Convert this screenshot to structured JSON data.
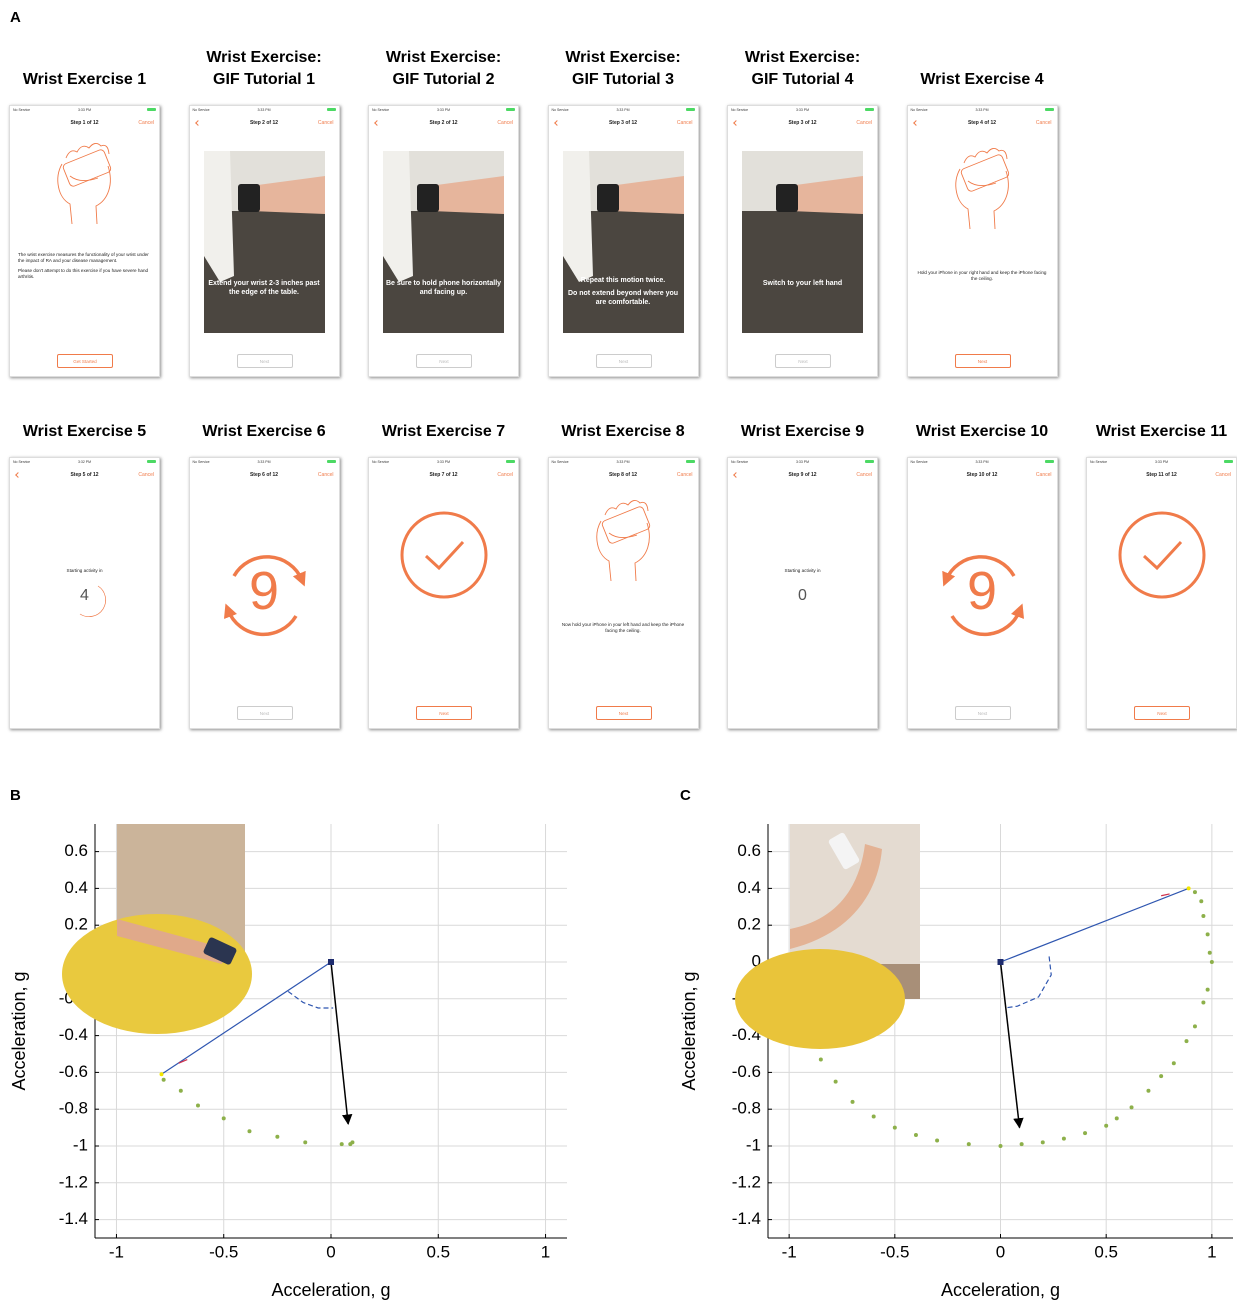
{
  "panel_labels": [
    "A",
    "B",
    "C"
  ],
  "screens": [
    [
      {
        "title": [
          "Wrist Exercise 1"
        ],
        "carrier": "No Service",
        "time": "3:33 PM",
        "step": "Step 1 of 12",
        "cancel": "Cancel",
        "back": false,
        "kind": "hand",
        "align": "left",
        "text": [
          "The wrist exercise measures the functionality of your wrist under the impact of RA and your disease management.",
          "Please don't attempt to do this exercise if you have severe hand arthritis."
        ],
        "button": "Get Started",
        "button_enabled": true
      },
      {
        "title": [
          "Wrist Exercise:",
          "GIF Tutorial 1"
        ],
        "carrier": "No Service",
        "time": "3:33 PM",
        "step": "Step 2 of 12",
        "cancel": "Cancel",
        "back": true,
        "kind": "photo",
        "table": true,
        "text": [
          "Extend your wrist 2-3 inches past the edge of the table."
        ],
        "button": "Next",
        "button_enabled": false
      },
      {
        "title": [
          "Wrist Exercise:",
          "GIF Tutorial 2"
        ],
        "carrier": "No Service",
        "time": "3:33 PM",
        "step": "Step 2 of 12",
        "cancel": "Cancel",
        "back": true,
        "kind": "photo",
        "table": true,
        "text": [
          "Be sure to hold phone horizontally and facing up."
        ],
        "button": "Next",
        "button_enabled": false
      },
      {
        "title": [
          "Wrist Exercise:",
          "GIF Tutorial 3"
        ],
        "carrier": "No Service",
        "time": "3:33 PM",
        "step": "Step 3 of 12",
        "cancel": "Cancel",
        "back": true,
        "kind": "photo",
        "table": true,
        "text": [
          "Repeat this motion twice.",
          "Do not extend beyond where you are comfortable."
        ],
        "button": "Next",
        "button_enabled": false
      },
      {
        "title": [
          "Wrist Exercise:",
          "GIF Tutorial 4"
        ],
        "carrier": "No Service",
        "time": "3:33 PM",
        "step": "Step 3 of 12",
        "cancel": "Cancel",
        "back": true,
        "kind": "photo",
        "table": false,
        "text": [
          "Switch to your left hand"
        ],
        "button": "Next",
        "button_enabled": false
      },
      {
        "title": [
          "Wrist Exercise 4"
        ],
        "carrier": "No Service",
        "time": "3:33 PM",
        "step": "Step 4 of 12",
        "cancel": "Cancel",
        "back": true,
        "kind": "hand",
        "align": "center",
        "text": [
          "Hold your iPhone in your right hand and keep the iPhone facing the ceiling."
        ],
        "button": "Next",
        "button_enabled": true
      }
    ],
    [
      {
        "title": [
          "Wrist Exercise 5"
        ],
        "carrier": "No Service",
        "time": "3:32 PM",
        "step": "Step 5 of 12",
        "cancel": "Cancel",
        "back": true,
        "kind": "countdown",
        "ring": true,
        "text": [
          "Starting activity in"
        ],
        "number": "4"
      },
      {
        "title": [
          "Wrist Exercise 6"
        ],
        "carrier": "No Service",
        "time": "3:33 PM",
        "step": "Step 6 of 12",
        "cancel": "Cancel",
        "back": false,
        "kind": "rotate",
        "mirror": false,
        "number": "9",
        "button": "Next",
        "button_enabled": false
      },
      {
        "title": [
          "Wrist Exercise 7"
        ],
        "carrier": "No Service",
        "time": "3:33 PM",
        "step": "Step 7 of 12",
        "cancel": "Cancel",
        "back": false,
        "kind": "check",
        "button": "Next",
        "button_enabled": true
      },
      {
        "title": [
          "Wrist Exercise 8"
        ],
        "carrier": "No Service",
        "time": "3:33 PM",
        "step": "Step 8 of 12",
        "cancel": "Cancel",
        "back": false,
        "kind": "hand",
        "align": "center",
        "text": [
          "Now hold your iPhone in your left hand and keep the iPhone facing the ceiling."
        ],
        "button": "Next",
        "button_enabled": true
      },
      {
        "title": [
          "Wrist Exercise 9"
        ],
        "carrier": "No Service",
        "time": "3:33 PM",
        "step": "Step 9 of 12",
        "cancel": "Cancel",
        "back": true,
        "kind": "countdown",
        "ring": false,
        "text": [
          "Starting activity in"
        ],
        "number": "0"
      },
      {
        "title": [
          "Wrist Exercise 10"
        ],
        "carrier": "No Service",
        "time": "3:33 PM",
        "step": "Step 10 of 12",
        "cancel": "Cancel",
        "back": false,
        "kind": "rotate",
        "mirror": true,
        "number": "9",
        "button": "Next",
        "button_enabled": false
      },
      {
        "title": [
          "Wrist Exercise 11"
        ],
        "carrier": "No Service",
        "time": "3:33 PM",
        "step": "Step 11 of 12",
        "cancel": "Cancel",
        "back": false,
        "kind": "check",
        "button": "Next",
        "button_enabled": true
      }
    ]
  ],
  "chart_data": [
    {
      "type": "scatter",
      "xlabel": "Acceleration, g",
      "ylabel": "Acceleration, g",
      "xlim": [
        -1.1,
        1.1
      ],
      "ylim": [
        -1.5,
        0.75
      ],
      "xticks": [
        -1,
        -0.5,
        0,
        0.5,
        1
      ],
      "yticks": [
        0.6,
        0.4,
        0.2,
        0,
        -0.2,
        -0.4,
        -0.6,
        -0.8,
        -1,
        -1.2,
        -1.4
      ],
      "grid": true,
      "series": [
        {
          "mode": "markers",
          "color": "#8db04a",
          "x": [
            -0.78,
            -0.7,
            -0.62,
            -0.5,
            -0.38,
            -0.25,
            -0.12,
            0.05,
            0.09,
            0.1
          ],
          "values": [
            -0.64,
            -0.7,
            -0.78,
            -0.85,
            -0.92,
            -0.95,
            -0.98,
            -0.99,
            -0.99,
            -0.98
          ]
        },
        {
          "mode": "line",
          "color": "#2f56b0",
          "x": [
            0,
            -0.79
          ],
          "values": [
            0,
            -0.61
          ]
        },
        {
          "mode": "dashed",
          "color": "#2f56b0",
          "x": [
            -0.2,
            -0.13,
            -0.06,
            0.01
          ],
          "values": [
            -0.16,
            -0.22,
            -0.25,
            -0.25
          ]
        },
        {
          "mode": "arrow",
          "color": "#000000",
          "x": [
            0,
            0.08
          ],
          "values": [
            0,
            -0.88
          ]
        },
        {
          "mode": "line",
          "color": "#d0304a",
          "x": [
            -0.71,
            -0.67
          ],
          "values": [
            -0.55,
            -0.53
          ]
        },
        {
          "mode": "square",
          "color": "#1d2b6e",
          "x": [
            0
          ],
          "values": [
            0
          ]
        },
        {
          "mode": "markers",
          "color": "#f2e600",
          "x": [
            -0.79
          ],
          "values": [
            -0.61
          ]
        }
      ]
    },
    {
      "type": "scatter",
      "xlabel": "Acceleration, g",
      "ylabel": "Acceleration, g",
      "xlim": [
        -1.1,
        1.1
      ],
      "ylim": [
        -1.5,
        0.75
      ],
      "xticks": [
        -1,
        -0.5,
        0,
        0.5,
        1
      ],
      "yticks": [
        0.6,
        0.4,
        0.2,
        0,
        -0.2,
        -0.4,
        -0.6,
        -0.8,
        -1,
        -1.2,
        -1.4
      ],
      "grid": true,
      "series": [
        {
          "mode": "markers",
          "color": "#8db04a",
          "x": [
            -0.85,
            -0.78,
            -0.7,
            -0.6,
            -0.5,
            -0.4,
            -0.3,
            -0.15,
            0,
            0.1,
            0.2,
            0.3,
            0.4,
            0.5,
            0.55,
            0.62,
            0.7,
            0.76,
            0.82,
            0.88,
            0.92,
            0.96,
            0.98,
            1,
            0.99,
            0.98,
            0.96,
            0.95,
            0.92
          ],
          "values": [
            -0.53,
            -0.65,
            -0.76,
            -0.84,
            -0.9,
            -0.94,
            -0.97,
            -0.99,
            -1,
            -0.99,
            -0.98,
            -0.96,
            -0.93,
            -0.89,
            -0.85,
            -0.79,
            -0.7,
            -0.62,
            -0.55,
            -0.43,
            -0.35,
            -0.22,
            -0.15,
            0,
            0.05,
            0.15,
            0.25,
            0.33,
            0.38
          ]
        },
        {
          "mode": "line",
          "color": "#2f56b0",
          "x": [
            0,
            0.89
          ],
          "values": [
            0,
            0.4
          ]
        },
        {
          "mode": "dashed",
          "color": "#2f56b0",
          "x": [
            0.23,
            0.24,
            0.18,
            0.08,
            0.02
          ],
          "values": [
            0.03,
            -0.07,
            -0.19,
            -0.24,
            -0.25
          ]
        },
        {
          "mode": "arrow",
          "color": "#000000",
          "x": [
            0,
            0.09
          ],
          "values": [
            0,
            -0.9
          ]
        },
        {
          "mode": "line",
          "color": "#d0304a",
          "x": [
            0.76,
            0.8
          ],
          "values": [
            0.36,
            0.37
          ]
        },
        {
          "mode": "square",
          "color": "#1d2b6e",
          "x": [
            0
          ],
          "values": [
            0
          ]
        },
        {
          "mode": "markers",
          "color": "#f2e600",
          "x": [
            0.89
          ],
          "values": [
            0.4
          ]
        }
      ]
    }
  ]
}
